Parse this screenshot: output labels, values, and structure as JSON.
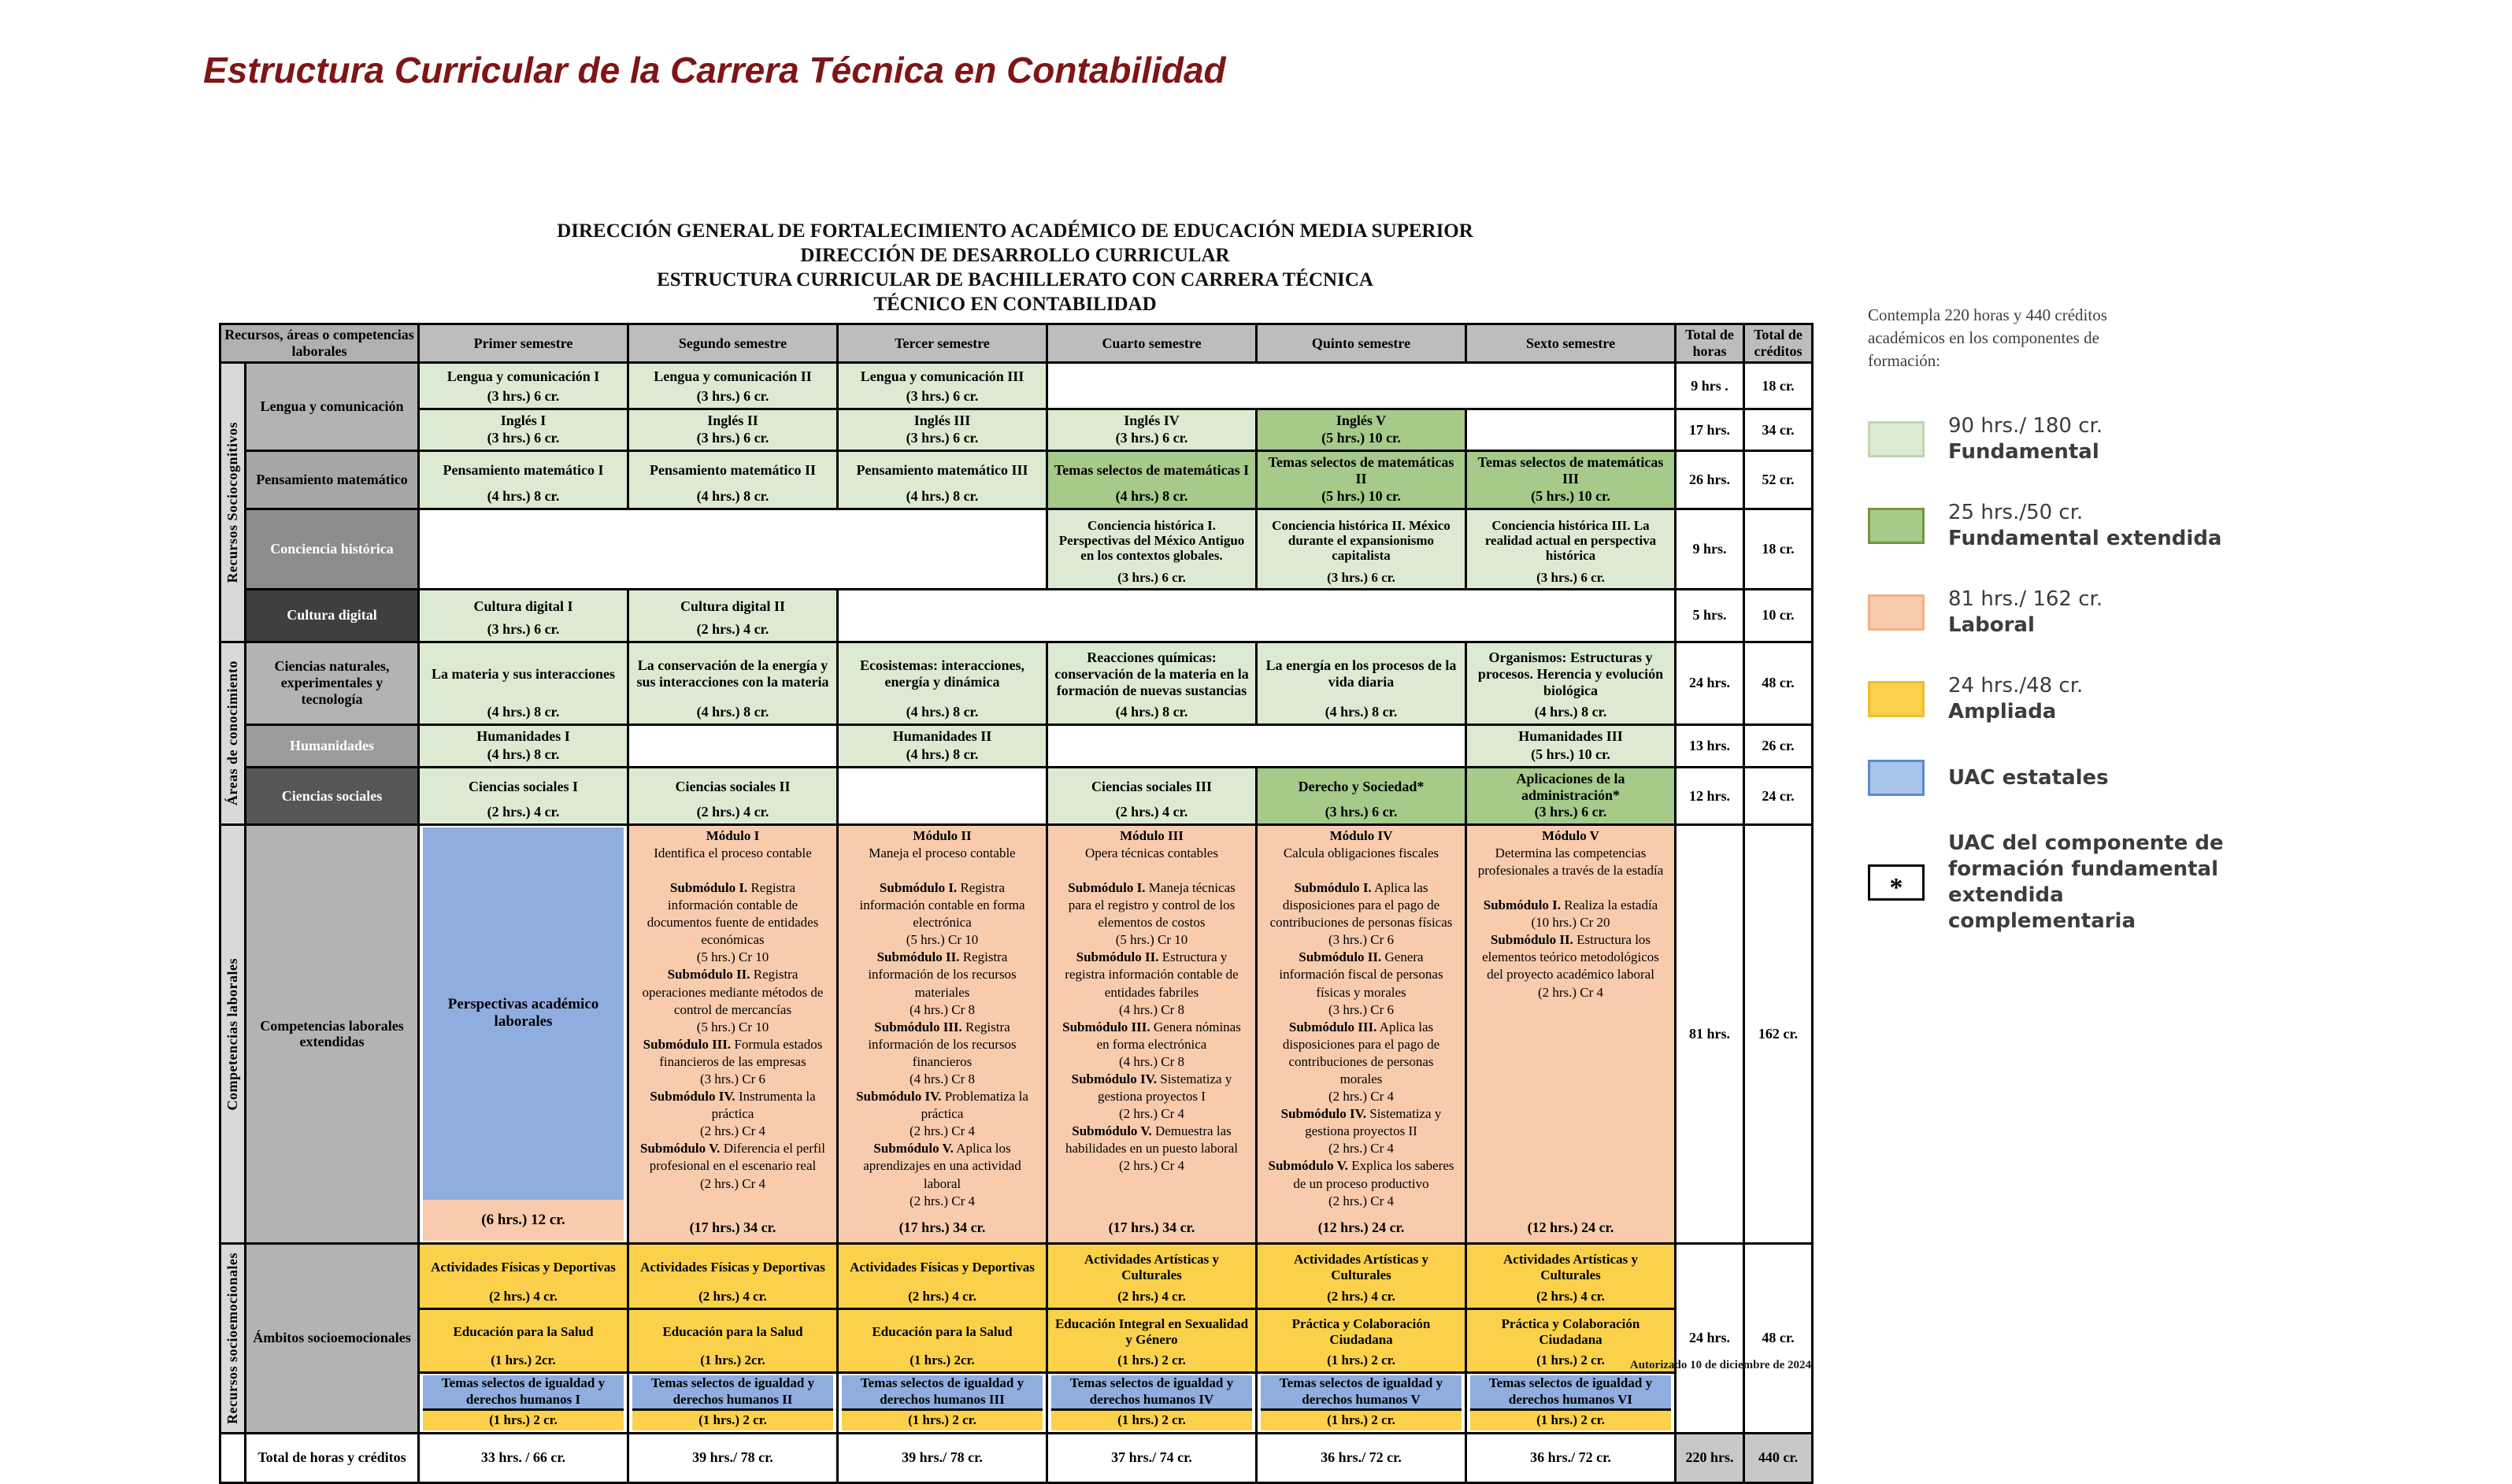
{
  "page": {
    "title": "Estructura Curricular de la Carrera Técnica en Contabilidad",
    "footer_note": "Autorizado 10 de diciembre de 2024"
  },
  "doc_header": {
    "l1": "DIRECCIÓN GENERAL DE FORTALECIMIENTO ACADÉMICO DE EDUCACIÓN MEDIA SUPERIOR",
    "l2": "DIRECCIÓN DE DESARROLLO CURRICULAR",
    "l3": "ESTRUCTURA CURRICULAR DE BACHILLERATO CON CARRERA TÉCNICA",
    "l4": "TÉCNICO EN CONTABILIDAD"
  },
  "labels": {
    "header_col": "Recursos, áreas o competencias laborales",
    "semesters": [
      "Primer semestre",
      "Segundo semestre",
      "Tercer semestre",
      "Cuarto semestre",
      "Quinto semestre",
      "Sexto semestre"
    ],
    "total_hours": "Total de horas",
    "total_credits": "Total de créditos",
    "g1": "Recursos Sociocognitivos",
    "g2": "Áreas de conocimiento",
    "g3": "Competencias laborales",
    "g4": "Recursos socioemocionales",
    "lengua": "Lengua y comunicación",
    "pensamiento": "Pensamiento matemático",
    "conciencia": "Conciencia histórica",
    "cultura": "Cultura digital",
    "ciencias_nat": "Ciencias naturales, experimentales y tecnología",
    "humanidades": "Humanidades",
    "ciencias_soc": "Ciencias sociales",
    "comp_lab": "Competencias laborales extendidas",
    "ambitos": "Ámbitos socioemocionales",
    "grand": "Total de horas y créditos"
  },
  "cells": {
    "lc1": {
      "t": "Lengua y comunicación I",
      "h": "(3 hrs.)  6 cr."
    },
    "lc2": {
      "t": "Lengua y comunicación II",
      "h": "(3 hrs.)  6 cr."
    },
    "lc3": {
      "t": "Lengua y comunicación III",
      "h": "(3 hrs.)  6 cr."
    },
    "ing1": {
      "t": "Inglés I",
      "h": "(3 hrs.)  6 cr."
    },
    "ing2": {
      "t": "Inglés II",
      "h": "(3 hrs.)  6 cr."
    },
    "ing3": {
      "t": "Inglés III",
      "h": "(3 hrs.)  6 cr."
    },
    "ing4": {
      "t": "Inglés IV",
      "h": "(3 hrs.)  6 cr."
    },
    "ing5": {
      "t": "Inglés V",
      "h": "(5 hrs.)  10 cr."
    },
    "pm1": {
      "t": "Pensamiento matemático I",
      "h": "(4 hrs.)  8 cr."
    },
    "pm2": {
      "t": "Pensamiento matemático II",
      "h": "(4 hrs.)  8 cr."
    },
    "pm3": {
      "t": "Pensamiento matemático III",
      "h": "(4 hrs.)  8 cr."
    },
    "tsm1": {
      "t": "Temas selectos de matemáticas I",
      "h": "(4 hrs.)  8 cr."
    },
    "tsm2": {
      "t": "Temas selectos de matemáticas II",
      "h": "(5 hrs.)  10 cr."
    },
    "tsm3": {
      "t": "Temas selectos de matemáticas III",
      "h": "(5 hrs.)  10 cr."
    },
    "ch1": {
      "t": "Conciencia histórica I. Perspectivas del México Antiguo en los contextos globales.",
      "h": "(3 hrs.)  6 cr."
    },
    "ch2": {
      "t": "Conciencia histórica II. México durante el expansionismo capitalista",
      "h": "(3 hrs.)  6 cr."
    },
    "ch3": {
      "t": "Conciencia histórica III. La realidad actual en perspectiva histórica",
      "h": "(3 hrs.)  6 cr."
    },
    "cd1": {
      "t": "Cultura digital I",
      "h": "(3 hrs.)  6 cr."
    },
    "cd2": {
      "t": "Cultura digital II",
      "h": "(2 hrs.)  4 cr."
    },
    "cn1": {
      "t": "La materia y sus interacciones",
      "h": "(4 hrs.)  8 cr."
    },
    "cn2": {
      "t": "La conservación de la energía y sus interacciones con la materia",
      "h": "(4 hrs.)  8 cr."
    },
    "cn3": {
      "t": "Ecosistemas: interacciones, energía y dinámica",
      "h": "(4 hrs.)  8 cr."
    },
    "cn4": {
      "t": "Reacciones químicas: conservación de la materia en la formación de nuevas sustancias",
      "h": "(4 hrs.)  8 cr."
    },
    "cn5": {
      "t": "La energía en los procesos de la vida diaria",
      "h": "(4 hrs.)  8 cr."
    },
    "cn6": {
      "t": "Organismos: Estructuras y procesos. Herencia y evolución biológica",
      "h": "(4 hrs.)  8 cr."
    },
    "hum1": {
      "t": "Humanidades I",
      "h": "(4 hrs.)  8 cr."
    },
    "hum2": {
      "t": "Humanidades II",
      "h": "(4 hrs.)  8 cr."
    },
    "hum3": {
      "t": "Humanidades III",
      "h": "(5 hrs.)  10 cr."
    },
    "cs1": {
      "t": "Ciencias sociales I",
      "h": "(2 hrs.)  4 cr."
    },
    "cs2": {
      "t": "Ciencias sociales II",
      "h": "(2 hrs.)  4 cr."
    },
    "cs3": {
      "t": "Ciencias sociales III",
      "h": "(2 hrs.)  4 cr."
    },
    "der": {
      "t": "Derecho y Sociedad*",
      "h": "(3 hrs.)  6 cr."
    },
    "apl": {
      "t": "Aplicaciones de la administración*",
      "h": "(3 hrs.)  6 cr."
    },
    "afd": {
      "t": "Actividades Físicas y Deportivas",
      "h": "(2 hrs.)  4 cr."
    },
    "aac": {
      "t": "Actividades Artísticas y Culturales",
      "h": "(2 hrs.)  4 cr."
    },
    "eps": {
      "t": "Educación para la Salud",
      "h": "(1 hrs.)  2cr."
    },
    "eisg": {
      "t": "Educación Integral en Sexualidad y Género",
      "h": "(1 hrs.)  2 cr."
    },
    "pcc": {
      "t": "Práctica y Colaboración Ciudadana",
      "h": "(1 hrs.)  2 cr."
    },
    "tsidh1": {
      "t": "Temas selectos de igualdad y derechos humanos I"
    },
    "tsidh2": {
      "t": "Temas selectos de igualdad y derechos humanos II"
    },
    "tsidh3": {
      "t": "Temas selectos de igualdad y derechos humanos III"
    },
    "tsidh4": {
      "t": "Temas selectos de igualdad y derechos humanos IV"
    },
    "tsidh5": {
      "t": "Temas selectos de igualdad y derechos humanos V"
    },
    "tsidh6": {
      "t": "Temas selectos de igualdad y derechos humanos VI"
    },
    "tsidh_h": "(1 hrs.)  2 cr."
  },
  "modules": {
    "persp": {
      "t": "Perspectivas académico laborales",
      "foot": "(6 hrs.)  12 cr."
    },
    "m1": {
      "name": "Módulo I",
      "desc": "Identifica el proceso contable",
      "subs": [
        {
          "b": "Submódulo I.",
          "t": " Registra información contable de documentos fuente de entidades económicas",
          "h": "(5 hrs.) Cr 10"
        },
        {
          "b": "Submódulo II.",
          "t": " Registra operaciones mediante métodos de control de mercancías",
          "h": "(5 hrs.) Cr 10"
        },
        {
          "b": "Submódulo III.",
          "t": " Formula estados financieros de las empresas",
          "h": "(3 hrs.) Cr 6"
        },
        {
          "b": "Submódulo IV.",
          "t": " Instrumenta la práctica",
          "h": "(2 hrs.) Cr 4"
        },
        {
          "b": "Submódulo V.",
          "t": " Diferencia el perfil profesional en el escenario real",
          "h": "(2 hrs.) Cr 4"
        }
      ],
      "foot": "(17 hrs.)  34 cr."
    },
    "m2": {
      "name": "Módulo II",
      "desc": "Maneja el proceso contable",
      "subs": [
        {
          "b": "Submódulo I.",
          "t": " Registra información contable en forma electrónica",
          "h": "(5 hrs.) Cr 10"
        },
        {
          "b": "Submódulo II.",
          "t": " Registra información de los recursos materiales",
          "h": "(4 hrs.) Cr 8"
        },
        {
          "b": "Submódulo III.",
          "t": " Registra información de los recursos financieros",
          "h": "(4 hrs.) Cr 8"
        },
        {
          "b": "Submódulo IV.",
          "t": " Problematiza la práctica",
          "h": "(2 hrs.) Cr 4"
        },
        {
          "b": "Submódulo V.",
          "t": " Aplica los aprendizajes en una actividad laboral",
          "h": "(2 hrs.) Cr 4"
        }
      ],
      "foot": "(17 hrs.)  34 cr."
    },
    "m3": {
      "name": "Módulo III",
      "desc": "Opera técnicas contables",
      "subs": [
        {
          "b": "Submódulo I.",
          "t": " Maneja técnicas para el registro y control de los elementos de costos",
          "h": "(5 hrs.) Cr 10"
        },
        {
          "b": "Submódulo II.",
          "t": " Estructura y registra información contable de entidades fabriles",
          "h": "(4 hrs.) Cr 8"
        },
        {
          "b": "Submódulo III.",
          "t": " Genera nóminas en forma electrónica",
          "h": "(4 hrs.) Cr 8"
        },
        {
          "b": "Submódulo IV.",
          "t": " Sistematiza y gestiona proyectos I",
          "h": "(2 hrs.) Cr 4"
        },
        {
          "b": "Submódulo V.",
          "t": " Demuestra las habilidades en un puesto laboral",
          "h": "(2 hrs.) Cr 4"
        }
      ],
      "foot": "(17 hrs.)  34 cr."
    },
    "m4": {
      "name": "Módulo IV",
      "desc": "Calcula obligaciones fiscales",
      "subs": [
        {
          "b": "Submódulo I.",
          "t": " Aplica las disposiciones para el pago de contribuciones de personas físicas",
          "h": "(3 hrs.) Cr 6"
        },
        {
          "b": "Submódulo II.",
          "t": " Genera información fiscal de personas físicas y morales",
          "h": "(3 hrs.) Cr 6"
        },
        {
          "b": "Submódulo III.",
          "t": " Aplica las disposiciones para el pago de contribuciones de personas morales",
          "h": "(2 hrs.) Cr 4"
        },
        {
          "b": "Submódulo IV.",
          "t": " Sistematiza y gestiona proyectos II",
          "h": "(2 hrs.) Cr 4"
        },
        {
          "b": "Submódulo V.",
          "t": " Explica los saberes de un proceso productivo",
          "h": "(2 hrs.) Cr 4"
        }
      ],
      "foot": "(12 hrs.)  24 cr."
    },
    "m5": {
      "name": "Módulo V",
      "desc": "Determina las competencias profesionales a través de la estadía",
      "subs": [
        {
          "b": "Submódulo I.",
          "t": " Realiza la estadía",
          "h": "(10 hrs.) Cr 20"
        },
        {
          "b": "Submódulo II.",
          "t": " Estructura los elementos teórico metodológicos del proyecto académico laboral",
          "h": "(2 hrs.) Cr 4"
        }
      ],
      "foot": "(12 hrs.)  24 cr."
    }
  },
  "totals": {
    "lc": {
      "h": "9 hrs .",
      "c": "18 cr."
    },
    "ing": {
      "h": "17 hrs.",
      "c": "34 cr."
    },
    "pm": {
      "h": "26 hrs.",
      "c": "52 cr."
    },
    "ch": {
      "h": "9 hrs.",
      "c": "18 cr."
    },
    "cd": {
      "h": "5 hrs.",
      "c": "10 cr."
    },
    "cn": {
      "h": "24 hrs.",
      "c": "48 cr."
    },
    "hum": {
      "h": "13 hrs.",
      "c": "26 cr."
    },
    "cs": {
      "h": "12 hrs.",
      "c": "24 cr."
    },
    "mod": {
      "h": "81 hrs.",
      "c": "162 cr."
    },
    "socio": {
      "h": "24 hrs.",
      "c": "48 cr."
    }
  },
  "grand": {
    "values": [
      "33 hrs. / 66 cr.",
      "39 hrs./ 78 cr.",
      "39 hrs./ 78 cr.",
      "37 hrs./ 74 cr.",
      "36 hrs./ 72 cr.",
      "36 hrs./ 72 cr.",
      "220 hrs.",
      "440 cr."
    ]
  },
  "legend": {
    "intro": "Contempla 220 horas y 440 créditos académicos en los componentes de formación:",
    "items": [
      {
        "value": "90 hrs./ 180 cr.",
        "name": "Fundamental",
        "fill": "#dcead2",
        "border": "#c2d6ab"
      },
      {
        "value": "25 hrs./50 cr.",
        "name": "Fundamental extendida",
        "fill": "#a6ca89",
        "border": "#76963d"
      },
      {
        "value": "81 hrs./ 162 cr.",
        "name": "Laboral",
        "fill": "#f8cbad",
        "border": "#f0b184"
      },
      {
        "value": "24 hrs./48 cr.",
        "name": "Ampliada",
        "fill": "#fbd14b",
        "border": "#edbe2e"
      },
      {
        "value": "",
        "name": "UAC estatales",
        "fill": "#a9c4ea",
        "border": "#5b8bd0"
      },
      {
        "value": "",
        "name": "UAC del componente de\nformación fundamental\nextendida\ncomplementaria",
        "fill": "#ffffff",
        "border": "#000000",
        "symbol": "*"
      }
    ]
  },
  "colors": {
    "fundamental": "#dcead2",
    "fundamental_extendida": "#a6ca89",
    "laboral": "#f8cbad",
    "ampliada": "#fbd14b",
    "uac_estatales": "#8fadde",
    "title": "#7e1516"
  }
}
